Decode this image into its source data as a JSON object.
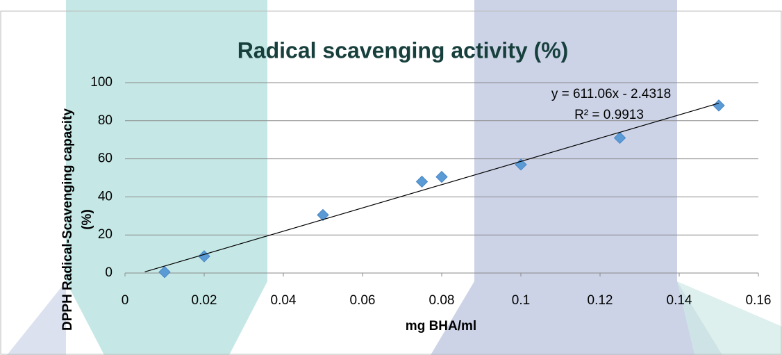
{
  "chart_data": {
    "type": "scatter",
    "title": "Radical scavenging activity (%)",
    "xlabel": "mg BHA/ml",
    "ylabel": [
      "DPPH Radical-Scavenging capacity",
      "(%)"
    ],
    "series": [
      {
        "color": "#5b9bd5",
        "x": [
          0.01,
          0.02,
          0.05,
          0.075,
          0.08,
          0.1,
          0.125,
          0.15
        ],
        "values": [
          0.5,
          8.8,
          30.5,
          48,
          50.5,
          57,
          71,
          88
        ]
      }
    ],
    "trendline": {
      "x": [
        0.005,
        0.15
      ],
      "y": [
        0.6,
        89.2
      ],
      "color": "#000000",
      "equation": "y = 611.06x - 2.4318",
      "r2": "R² = 0.9913"
    },
    "xlim": [
      0,
      0.16
    ],
    "xticks": [
      0,
      0.02,
      0.04,
      0.06,
      0.08,
      0.1,
      0.12,
      0.14,
      0.16
    ],
    "ylim": [
      0,
      100
    ],
    "yticks": [
      0,
      20,
      40,
      60,
      80,
      100
    ],
    "grid": true
  }
}
